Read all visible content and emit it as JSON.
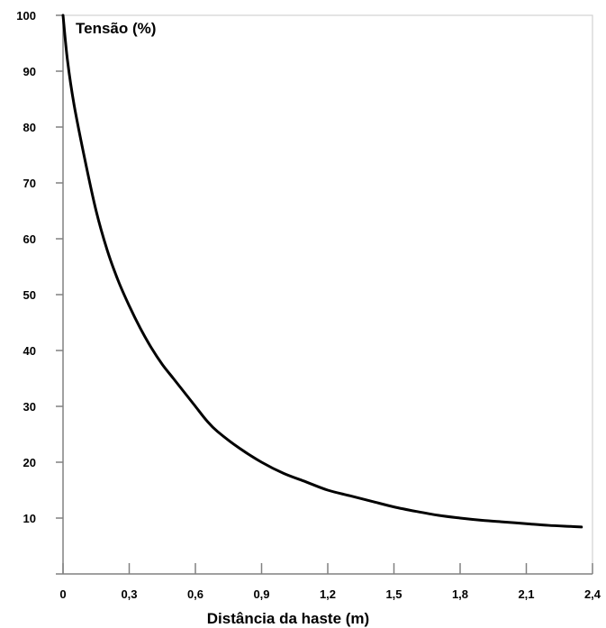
{
  "chart_data": {
    "type": "line",
    "ylabel": "Tensão (%)",
    "xlabel": "Distância da haste (m)",
    "xlim": [
      0,
      2.4
    ],
    "ylim": [
      0,
      100
    ],
    "x_ticks": [
      "0",
      "0,3",
      "0,6",
      "0,9",
      "1,2",
      "1,5",
      "1,8",
      "2,1",
      "2,4"
    ],
    "x_tick_values": [
      0,
      0.3,
      0.6,
      0.9,
      1.2,
      1.5,
      1.8,
      2.1,
      2.4
    ],
    "y_ticks": [
      "10",
      "20",
      "30",
      "40",
      "50",
      "60",
      "70",
      "80",
      "90",
      "100"
    ],
    "y_tick_values": [
      10,
      20,
      30,
      40,
      50,
      60,
      70,
      80,
      90,
      100
    ],
    "grid": false,
    "colors": {
      "axis": "#808080",
      "line": "#000000"
    },
    "series": [
      {
        "x": [
          0,
          0.02,
          0.05,
          0.1,
          0.15,
          0.2,
          0.25,
          0.3,
          0.35,
          0.4,
          0.45,
          0.5,
          0.55,
          0.6,
          0.65,
          0.7,
          0.8,
          0.9,
          1.0,
          1.1,
          1.2,
          1.3,
          1.4,
          1.5,
          1.6,
          1.7,
          1.8,
          1.9,
          2.0,
          2.1,
          2.2,
          2.3,
          2.35
        ],
        "y": [
          100,
          92,
          84,
          74,
          65,
          58,
          52.5,
          48,
          44,
          40.5,
          37.5,
          35,
          32.5,
          30,
          27.5,
          25.5,
          22.5,
          20,
          18,
          16.5,
          15,
          14,
          13,
          12,
          11.2,
          10.5,
          10,
          9.6,
          9.3,
          9,
          8.7,
          8.5,
          8.4
        ]
      }
    ]
  }
}
